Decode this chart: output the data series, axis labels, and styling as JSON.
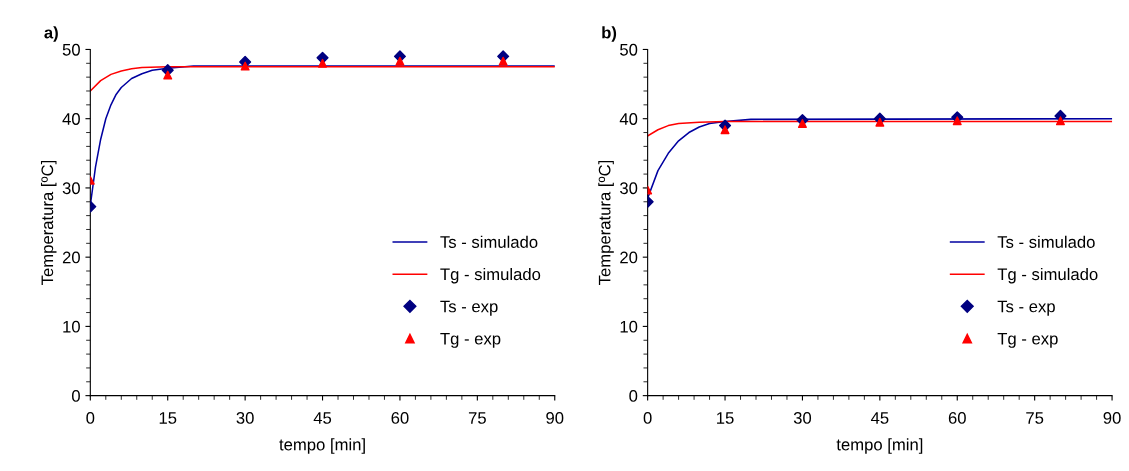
{
  "chart_data": [
    {
      "type": "line",
      "title": "a)",
      "xlabel": "tempo [min]",
      "ylabel": "Temperatura [ºC]",
      "xlim": [
        0,
        90
      ],
      "ylim": [
        0,
        50
      ],
      "xticks": [
        0,
        15,
        30,
        45,
        60,
        75,
        90
      ],
      "yticks": [
        0,
        10,
        20,
        30,
        40,
        50
      ],
      "grid": false,
      "legend": "right",
      "series": [
        {
          "name": "Ts - simulado",
          "color": "#0000a0",
          "marker": "none",
          "x": [
            0,
            1,
            2,
            3,
            4,
            5,
            6,
            8,
            10,
            12,
            15,
            20,
            90
          ],
          "values": [
            27.5,
            33,
            37,
            40,
            42,
            43.5,
            44.5,
            45.8,
            46.5,
            47,
            47.3,
            47.6,
            47.6
          ]
        },
        {
          "name": "Tg - simulado",
          "color": "#ff0000",
          "marker": "none",
          "x": [
            0,
            2,
            4,
            6,
            8,
            10,
            15,
            90
          ],
          "values": [
            44,
            45.5,
            46.4,
            46.9,
            47.2,
            47.4,
            47.5,
            47.5
          ]
        },
        {
          "name": "Ts - exp",
          "type": "scatter",
          "color": "#000080",
          "marker": "diamond",
          "x": [
            0,
            15,
            30,
            45,
            60,
            80
          ],
          "values": [
            27.3,
            47,
            48.2,
            48.8,
            49,
            49
          ]
        },
        {
          "name": "Tg - exp",
          "type": "scatter",
          "color": "#ff0000",
          "marker": "triangle",
          "x": [
            0,
            15,
            30,
            45,
            60,
            80
          ],
          "values": [
            31.1,
            46.3,
            47.6,
            48,
            48.3,
            48.3
          ]
        }
      ]
    },
    {
      "type": "line",
      "title": "b)",
      "xlabel": "tempo [min]",
      "ylabel": "Temperatura [ºC]",
      "xlim": [
        0,
        90
      ],
      "ylim": [
        0,
        50
      ],
      "xticks": [
        0,
        15,
        30,
        45,
        60,
        75,
        90
      ],
      "yticks": [
        0,
        10,
        20,
        30,
        40,
        50
      ],
      "grid": false,
      "legend": "right",
      "series": [
        {
          "name": "Ts - simulado",
          "color": "#0000a0",
          "marker": "none",
          "x": [
            0,
            2,
            4,
            6,
            8,
            10,
            12,
            15,
            20,
            90
          ],
          "values": [
            28.5,
            32.5,
            35,
            36.8,
            38,
            38.8,
            39.3,
            39.6,
            39.9,
            40
          ]
        },
        {
          "name": "Tg - simulado",
          "color": "#ff0000",
          "marker": "none",
          "x": [
            0,
            2,
            4,
            6,
            10,
            15,
            90
          ],
          "values": [
            37.5,
            38.4,
            39,
            39.3,
            39.5,
            39.6,
            39.6
          ]
        },
        {
          "name": "Ts - exp",
          "type": "scatter",
          "color": "#000080",
          "marker": "diamond",
          "x": [
            0,
            15,
            30,
            45,
            60,
            80
          ],
          "values": [
            28,
            39,
            39.8,
            40,
            40.2,
            40.4
          ]
        },
        {
          "name": "Tg - exp",
          "type": "scatter",
          "color": "#ff0000",
          "marker": "triangle",
          "x": [
            0,
            15,
            30,
            45,
            60,
            80
          ],
          "values": [
            29.7,
            38.4,
            39.3,
            39.5,
            39.7,
            39.7
          ]
        }
      ]
    }
  ]
}
